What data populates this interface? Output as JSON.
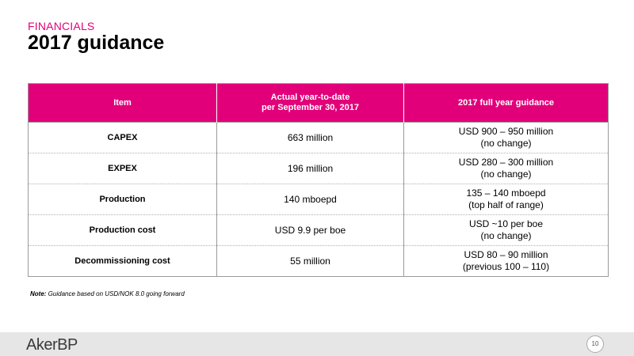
{
  "header": {
    "section": "FINANCIALS",
    "title": "2017 guidance"
  },
  "table": {
    "columns": [
      [
        "Item"
      ],
      [
        "Actual year-to-date",
        "per September 30, 2017"
      ],
      [
        "2017 full year guidance"
      ]
    ],
    "rows": [
      {
        "item": "CAPEX",
        "actual": "663 million",
        "guidance": [
          "USD 900 – 950 million",
          "(no change)"
        ]
      },
      {
        "item": "EXPEX",
        "actual": "196 million",
        "guidance": [
          "USD 280 – 300 million",
          "(no change)"
        ]
      },
      {
        "item": "Production",
        "actual": "140 mboepd",
        "guidance": [
          "135 – 140 mboepd",
          "(top half of range)"
        ]
      },
      {
        "item": "Production cost",
        "actual": "USD 9.9 per boe",
        "guidance": [
          "USD ~10 per boe",
          "(no change)"
        ]
      },
      {
        "item": "Decommissioning cost",
        "actual": "55 million",
        "guidance": [
          "USD 80 – 90 million",
          "(previous 100 – 110)"
        ]
      }
    ]
  },
  "note": {
    "label": "Note:",
    "text": " Guidance based on USD/NOK 8.0 going forward"
  },
  "footer": {
    "logo": "AkerBP",
    "page_number": "10"
  },
  "colors": {
    "accent": "#e2007a",
    "footer_bg": "#e6e6e6"
  }
}
